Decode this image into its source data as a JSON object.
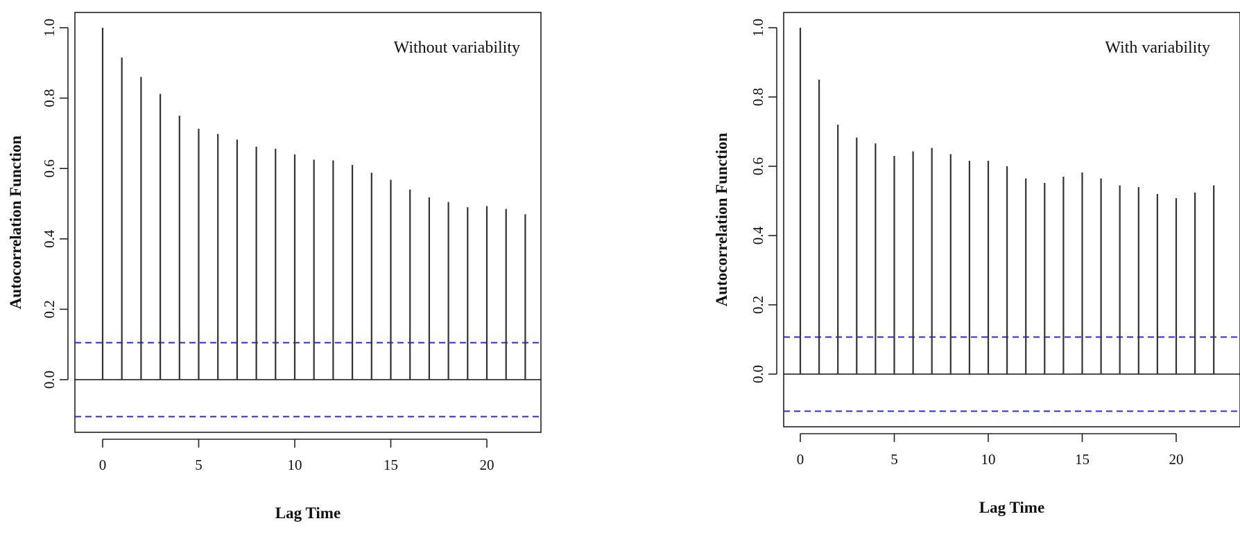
{
  "chart_data": [
    {
      "type": "bar",
      "subtype": "acf",
      "annotation": "Without variability",
      "xlabel": "Lag Time",
      "ylabel": "Autocorrelation Function",
      "xlim": [
        -1,
        23
      ],
      "ylim": [
        -0.15,
        1.05
      ],
      "x_ticks": [
        0,
        5,
        10,
        15,
        20
      ],
      "x_tick_labels": [
        "0",
        "5",
        "10",
        "15",
        "20"
      ],
      "y_ticks": [
        0.0,
        0.2,
        0.4,
        0.6,
        0.8,
        1.0
      ],
      "y_tick_labels": [
        "0.0",
        "0.2",
        "0.4",
        "0.6",
        "0.8",
        "1.0"
      ],
      "lags": [
        0,
        1,
        2,
        3,
        4,
        5,
        6,
        7,
        8,
        9,
        10,
        11,
        12,
        13,
        14,
        15,
        16,
        17,
        18,
        19,
        20,
        21,
        22
      ],
      "values": [
        1.0,
        0.915,
        0.86,
        0.812,
        0.75,
        0.713,
        0.698,
        0.682,
        0.662,
        0.656,
        0.64,
        0.625,
        0.623,
        0.61,
        0.588,
        0.568,
        0.54,
        0.518,
        0.505,
        0.49,
        0.493,
        0.485,
        0.47
      ],
      "confidence_bound": 0.105,
      "bar_color": "#333333",
      "ci_color": "#2a2ae8",
      "grid": false
    },
    {
      "type": "bar",
      "subtype": "acf",
      "annotation": "With variability",
      "xlabel": "Lag Time",
      "ylabel": "Autocorrelation Function",
      "xlim": [
        -1,
        23
      ],
      "ylim": [
        -0.15,
        1.05
      ],
      "x_ticks": [
        0,
        5,
        10,
        15,
        20
      ],
      "x_tick_labels": [
        "0",
        "5",
        "10",
        "15",
        "20"
      ],
      "y_ticks": [
        0.0,
        0.2,
        0.4,
        0.6,
        0.8,
        1.0
      ],
      "y_tick_labels": [
        "0.0",
        "0.2",
        "0.4",
        "0.6",
        "0.8",
        "1.0"
      ],
      "lags": [
        0,
        1,
        2,
        3,
        4,
        5,
        6,
        7,
        8,
        9,
        10,
        11,
        12,
        13,
        14,
        15,
        16,
        17,
        18,
        19,
        20,
        21,
        22
      ],
      "values": [
        1.0,
        0.85,
        0.72,
        0.683,
        0.666,
        0.63,
        0.643,
        0.653,
        0.635,
        0.616,
        0.616,
        0.6,
        0.565,
        0.552,
        0.57,
        0.582,
        0.565,
        0.545,
        0.54,
        0.52,
        0.508,
        0.524,
        0.545
      ],
      "confidence_bound": 0.107,
      "bar_color": "#333333",
      "ci_color": "#2a2ae8",
      "grid": false
    }
  ]
}
